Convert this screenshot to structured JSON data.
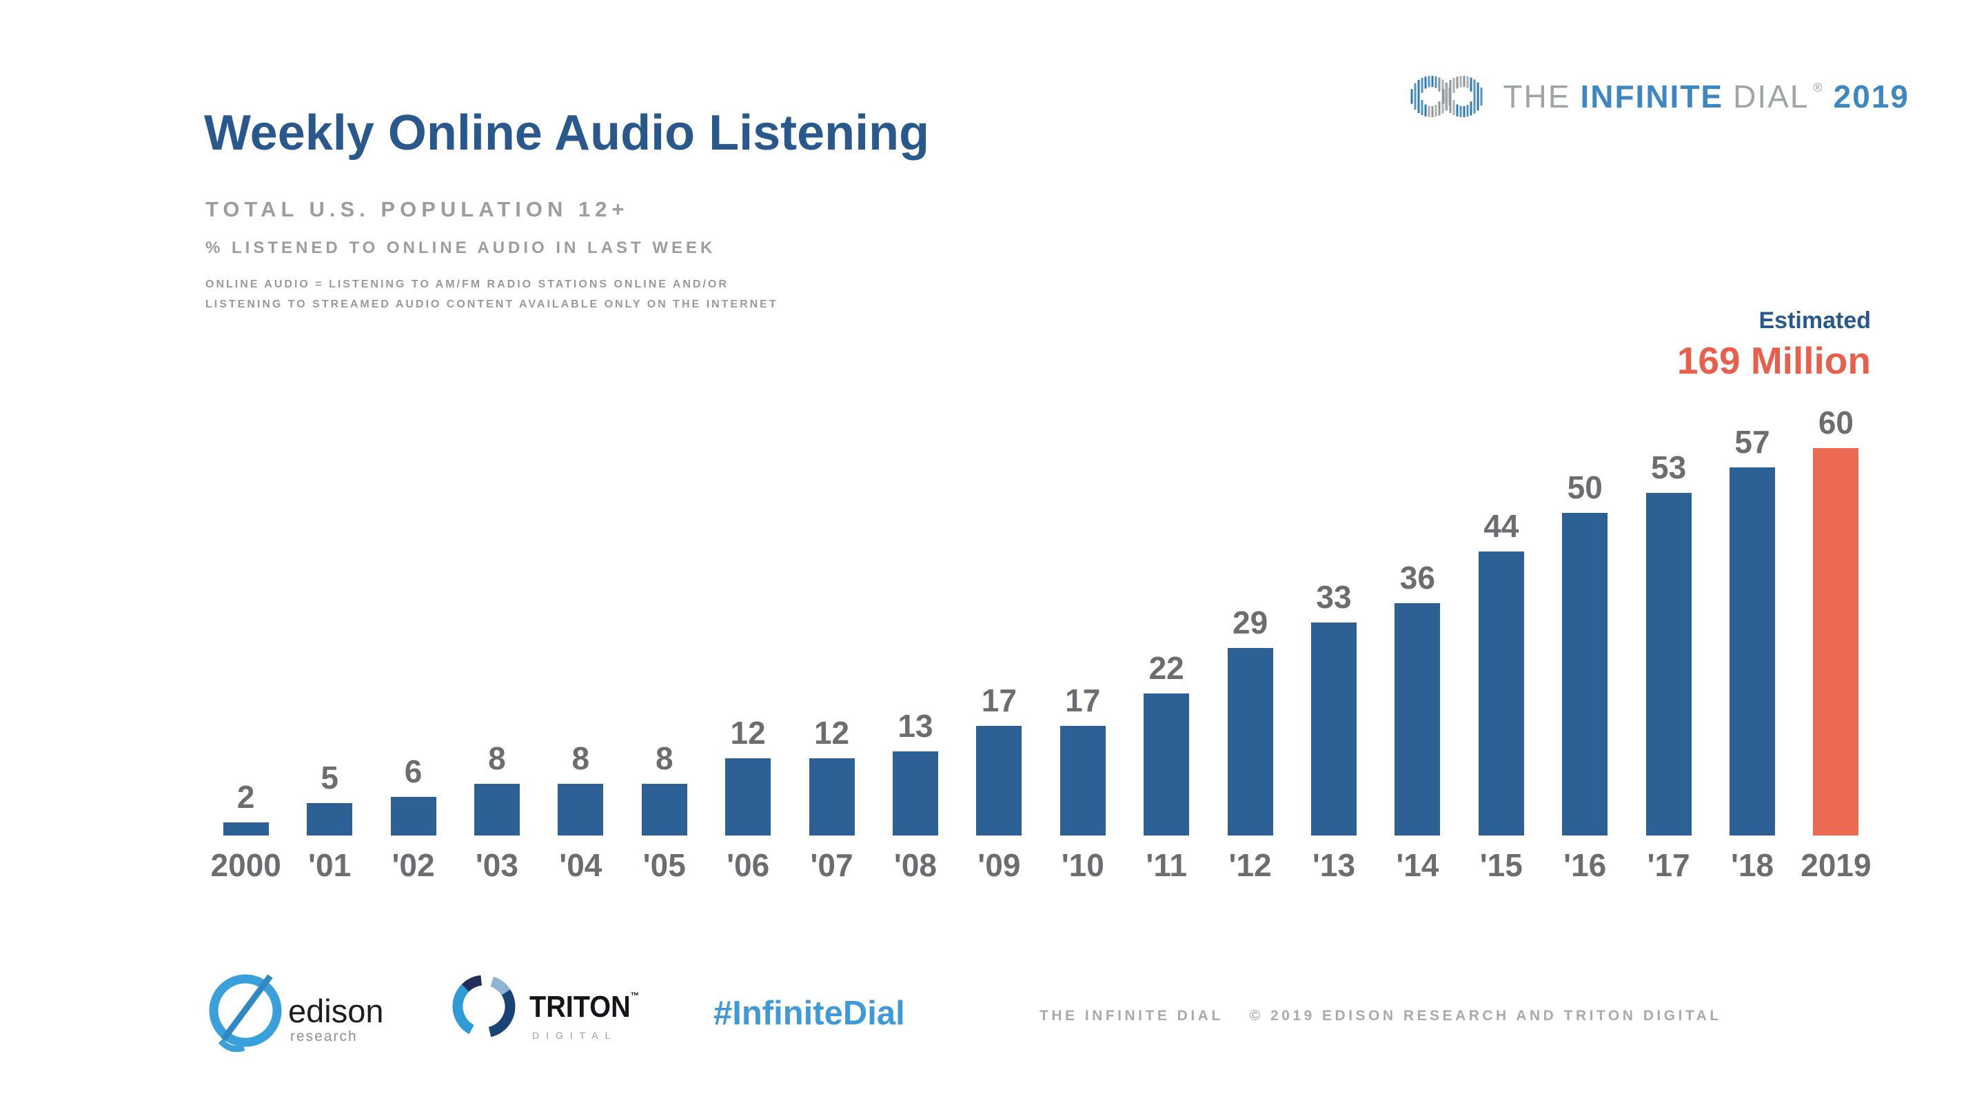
{
  "header": {
    "title": "Weekly Online Audio Listening",
    "subtitle1": "TOTAL U.S. POPULATION 12+",
    "subtitle2": "% LISTENED TO ONLINE AUDIO IN LAST WEEK",
    "note_line1": "ONLINE AUDIO = LISTENING TO AM/FM RADIO STATIONS ONLINE AND/OR",
    "note_line2": "LISTENING TO STREAMED AUDIO CONTENT AVAILABLE ONLY ON THE INTERNET"
  },
  "brand": {
    "the": "THE",
    "infinite": "INFINITE",
    "dial": "DIAL",
    "reg": "®",
    "year": "2019"
  },
  "annotation": {
    "line1": "Estimated",
    "line2": "169 Million"
  },
  "chart_data": {
    "type": "bar",
    "title": "Weekly Online Audio Listening",
    "ylabel": "% listened to online audio in last week",
    "categories": [
      "2000",
      "'01",
      "'02",
      "'03",
      "'04",
      "'05",
      "'06",
      "'07",
      "'08",
      "'09",
      "'10",
      "'11",
      "'12",
      "'13",
      "'14",
      "'15",
      "'16",
      "'17",
      "'18",
      "2019"
    ],
    "values": [
      2,
      5,
      6,
      8,
      8,
      8,
      12,
      12,
      13,
      17,
      17,
      22,
      29,
      33,
      36,
      44,
      50,
      53,
      57,
      60
    ],
    "ylim": [
      0,
      60
    ],
    "grid": false,
    "unit": "percent",
    "highlight_category": "2019",
    "bar_color": "#2d6195",
    "highlight_color": "#ec6a52",
    "value_labels_shown": true,
    "legend": "none"
  },
  "footer": {
    "edison_name": "edison",
    "edison_sub": "research",
    "triton_name": "TRITON",
    "triton_tm": "™",
    "triton_sub": "DIGITAL",
    "hashtag": "#InfiniteDial",
    "credit1": "THE INFINITE DIAL",
    "credit2": "© 2019 EDISON RESEARCH AND TRITON DIGITAL"
  },
  "colors": {
    "title_blue": "#29598c",
    "bar_blue": "#2d6195",
    "accent_orange": "#ec6a52",
    "estimated_orange": "#e8604c",
    "label_gray": "#6b6d70",
    "subtitle_gray": "#9b9da0",
    "logo_blue_1": "#4e92c6",
    "logo_blue_2": "#2f7ab3",
    "logo_gray_1": "#a9adb1",
    "logo_gray_2": "#8f9498",
    "hashtag_blue": "#3f9ad6",
    "edison_blue": "#3aa0dc",
    "triton_light_blue": "#2e9ad6",
    "triton_navy": "#1b4476",
    "triton_dark": "#223059",
    "triton_steel": "#8fb3d2"
  }
}
